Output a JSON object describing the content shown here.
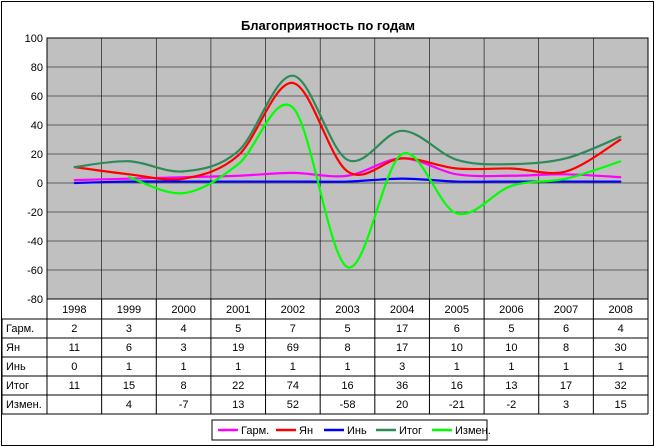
{
  "chart_data": {
    "type": "line",
    "title": "Благоприятность по годам",
    "categories": [
      "1998",
      "1999",
      "2000",
      "2001",
      "2002",
      "2003",
      "2004",
      "2005",
      "2006",
      "2007",
      "2008"
    ],
    "ylim": [
      -80,
      100
    ],
    "yticks": [
      100,
      80,
      60,
      40,
      20,
      0,
      -20,
      -40,
      -60,
      -80
    ],
    "grid": true,
    "legend_position": "bottom",
    "plot_background": "#c0c0c0",
    "series": [
      {
        "name": "Гарм.",
        "color": "#ff00ff",
        "values": [
          2,
          3,
          4,
          5,
          7,
          5,
          17,
          6,
          5,
          6,
          4
        ]
      },
      {
        "name": "Ян",
        "color": "#ff0000",
        "values": [
          11,
          6,
          3,
          19,
          69,
          8,
          17,
          10,
          10,
          8,
          30
        ]
      },
      {
        "name": "Инь",
        "color": "#0000ff",
        "values": [
          0,
          1,
          1,
          1,
          1,
          1,
          3,
          1,
          1,
          1,
          1
        ]
      },
      {
        "name": "Итог",
        "color": "#2e8b57",
        "values": [
          11,
          15,
          8,
          22,
          74,
          16,
          36,
          16,
          13,
          17,
          32
        ]
      },
      {
        "name": "Измен.",
        "color": "#00ff00",
        "values": [
          null,
          4,
          -7,
          13,
          52,
          -58,
          20,
          -21,
          -2,
          3,
          15
        ]
      }
    ],
    "table_rows": [
      {
        "label": "Гарм.",
        "cells": [
          "2",
          "3",
          "4",
          "5",
          "7",
          "5",
          "17",
          "6",
          "5",
          "6",
          "4"
        ]
      },
      {
        "label": "Ян",
        "cells": [
          "11",
          "6",
          "3",
          "19",
          "69",
          "8",
          "17",
          "10",
          "10",
          "8",
          "30"
        ]
      },
      {
        "label": "Инь",
        "cells": [
          "0",
          "1",
          "1",
          "1",
          "1",
          "1",
          "3",
          "1",
          "1",
          "1",
          "1"
        ]
      },
      {
        "label": "Итог",
        "cells": [
          "11",
          "15",
          "8",
          "22",
          "74",
          "16",
          "36",
          "16",
          "13",
          "17",
          "32"
        ]
      },
      {
        "label": "Измен.",
        "cells": [
          "",
          "4",
          "-7",
          "13",
          "52",
          "-58",
          "20",
          "-21",
          "-2",
          "3",
          "15"
        ]
      }
    ]
  }
}
